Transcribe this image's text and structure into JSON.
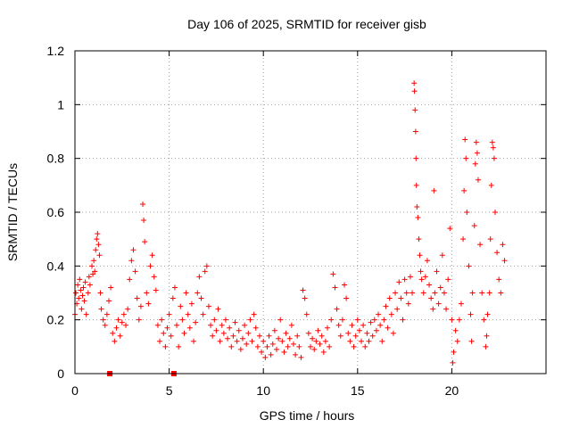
{
  "chart_data": {
    "type": "scatter",
    "title": "Day 106 of 2025, SRMTID for receiver gisb",
    "xlabel": "GPS time / hours",
    "ylabel": "SRMTID / TECUs",
    "xlim": [
      0,
      25
    ],
    "ylim": [
      0,
      1.2
    ],
    "xticks": [
      0,
      5,
      10,
      15,
      20
    ],
    "xtick_labels": [
      "0",
      "5",
      "10",
      "15",
      "20"
    ],
    "yticks": [
      0,
      0.2,
      0.4,
      0.6,
      0.8,
      1.0,
      1.2
    ],
    "ytick_labels": [
      "0",
      "0.2",
      "0.4",
      "0.6",
      "0.8",
      "1",
      "1.2"
    ],
    "grid": true,
    "marker": "plus",
    "color": "#ff0000",
    "series": [
      {
        "name": "gisb",
        "points": [
          [
            0.0,
            0.22
          ],
          [
            0.05,
            0.3
          ],
          [
            0.1,
            0.26
          ],
          [
            0.15,
            0.33
          ],
          [
            0.2,
            0.28
          ],
          [
            0.25,
            0.35
          ],
          [
            0.3,
            0.31
          ],
          [
            0.35,
            0.24
          ],
          [
            0.4,
            0.29
          ],
          [
            0.45,
            0.32
          ],
          [
            0.5,
            0.27
          ],
          [
            0.55,
            0.34
          ],
          [
            0.6,
            0.22
          ],
          [
            0.7,
            0.3
          ],
          [
            0.75,
            0.36
          ],
          [
            0.8,
            0.33
          ],
          [
            0.9,
            0.4
          ],
          [
            0.95,
            0.37
          ],
          [
            1.0,
            0.42
          ],
          [
            1.05,
            0.38
          ],
          [
            1.1,
            0.46
          ],
          [
            1.15,
            0.5
          ],
          [
            1.2,
            0.52
          ],
          [
            1.25,
            0.48
          ],
          [
            1.3,
            0.44
          ],
          [
            1.35,
            0.3
          ],
          [
            1.4,
            0.24
          ],
          [
            1.5,
            0.2
          ],
          [
            1.6,
            0.18
          ],
          [
            1.7,
            0.22
          ],
          [
            1.8,
            0.27
          ],
          [
            1.9,
            0.32
          ],
          [
            2.0,
            0.15
          ],
          [
            2.1,
            0.12
          ],
          [
            2.2,
            0.17
          ],
          [
            2.3,
            0.2
          ],
          [
            2.4,
            0.14
          ],
          [
            2.5,
            0.19
          ],
          [
            2.6,
            0.22
          ],
          [
            2.7,
            0.18
          ],
          [
            2.8,
            0.24
          ],
          [
            2.9,
            0.35
          ],
          [
            3.0,
            0.42
          ],
          [
            3.1,
            0.46
          ],
          [
            3.2,
            0.38
          ],
          [
            3.3,
            0.28
          ],
          [
            3.4,
            0.2
          ],
          [
            3.5,
            0.25
          ],
          [
            3.6,
            0.63
          ],
          [
            3.65,
            0.57
          ],
          [
            3.7,
            0.49
          ],
          [
            3.8,
            0.3
          ],
          [
            3.9,
            0.26
          ],
          [
            4.0,
            0.4
          ],
          [
            4.1,
            0.44
          ],
          [
            4.2,
            0.36
          ],
          [
            4.3,
            0.31
          ],
          [
            4.4,
            0.18
          ],
          [
            4.5,
            0.12
          ],
          [
            4.6,
            0.2
          ],
          [
            4.7,
            0.15
          ],
          [
            4.8,
            0.1
          ],
          [
            4.9,
            0.17
          ],
          [
            5.0,
            0.22
          ],
          [
            5.1,
            0.14
          ],
          [
            5.2,
            0.28
          ],
          [
            5.3,
            0.32
          ],
          [
            5.4,
            0.18
          ],
          [
            5.5,
            0.1
          ],
          [
            5.6,
            0.25
          ],
          [
            5.7,
            0.2
          ],
          [
            5.8,
            0.15
          ],
          [
            5.9,
            0.3
          ],
          [
            6.0,
            0.22
          ],
          [
            6.1,
            0.17
          ],
          [
            6.2,
            0.26
          ],
          [
            6.3,
            0.12
          ],
          [
            6.4,
            0.19
          ],
          [
            6.5,
            0.3
          ],
          [
            6.6,
            0.36
          ],
          [
            6.7,
            0.28
          ],
          [
            6.8,
            0.22
          ],
          [
            6.9,
            0.38
          ],
          [
            7.0,
            0.4
          ],
          [
            7.1,
            0.25
          ],
          [
            7.2,
            0.18
          ],
          [
            7.3,
            0.14
          ],
          [
            7.4,
            0.2
          ],
          [
            7.5,
            0.16
          ],
          [
            7.6,
            0.24
          ],
          [
            7.7,
            0.12
          ],
          [
            7.8,
            0.18
          ],
          [
            7.9,
            0.15
          ],
          [
            8.0,
            0.2
          ],
          [
            8.1,
            0.13
          ],
          [
            8.2,
            0.17
          ],
          [
            8.3,
            0.1
          ],
          [
            8.4,
            0.14
          ],
          [
            8.5,
            0.19
          ],
          [
            8.6,
            0.12
          ],
          [
            8.7,
            0.16
          ],
          [
            8.8,
            0.09
          ],
          [
            8.9,
            0.13
          ],
          [
            9.0,
            0.18
          ],
          [
            9.1,
            0.11
          ],
          [
            9.2,
            0.15
          ],
          [
            9.3,
            0.2
          ],
          [
            9.4,
            0.12
          ],
          [
            9.5,
            0.22
          ],
          [
            9.6,
            0.17
          ],
          [
            9.7,
            0.1
          ],
          [
            9.8,
            0.14
          ],
          [
            9.9,
            0.08
          ],
          [
            10.0,
            0.12
          ],
          [
            10.1,
            0.06
          ],
          [
            10.2,
            0.1
          ],
          [
            10.3,
            0.14
          ],
          [
            10.4,
            0.07
          ],
          [
            10.5,
            0.11
          ],
          [
            10.6,
            0.16
          ],
          [
            10.7,
            0.09
          ],
          [
            10.8,
            0.13
          ],
          [
            10.9,
            0.2
          ],
          [
            11.0,
            0.12
          ],
          [
            11.1,
            0.08
          ],
          [
            11.2,
            0.15
          ],
          [
            11.3,
            0.1
          ],
          [
            11.4,
            0.13
          ],
          [
            11.5,
            0.18
          ],
          [
            11.6,
            0.11
          ],
          [
            11.7,
            0.07
          ],
          [
            11.8,
            0.14
          ],
          [
            11.9,
            0.1
          ],
          [
            12.0,
            0.06
          ],
          [
            12.1,
            0.31
          ],
          [
            12.2,
            0.28
          ],
          [
            12.3,
            0.22
          ],
          [
            12.4,
            0.15
          ],
          [
            12.5,
            0.1
          ],
          [
            12.6,
            0.13
          ],
          [
            12.7,
            0.09
          ],
          [
            12.8,
            0.12
          ],
          [
            12.9,
            0.16
          ],
          [
            13.0,
            0.11
          ],
          [
            13.1,
            0.14
          ],
          [
            13.2,
            0.08
          ],
          [
            13.3,
            0.12
          ],
          [
            13.4,
            0.17
          ],
          [
            13.5,
            0.1
          ],
          [
            13.6,
            0.2
          ],
          [
            13.7,
            0.37
          ],
          [
            13.8,
            0.32
          ],
          [
            13.9,
            0.24
          ],
          [
            14.0,
            0.18
          ],
          [
            14.1,
            0.14
          ],
          [
            14.2,
            0.2
          ],
          [
            14.3,
            0.33
          ],
          [
            14.4,
            0.28
          ],
          [
            14.5,
            0.15
          ],
          [
            14.6,
            0.12
          ],
          [
            14.7,
            0.18
          ],
          [
            14.8,
            0.1
          ],
          [
            14.9,
            0.14
          ],
          [
            15.0,
            0.2
          ],
          [
            15.1,
            0.16
          ],
          [
            15.2,
            0.12
          ],
          [
            15.3,
            0.18
          ],
          [
            15.4,
            0.1
          ],
          [
            15.5,
            0.15
          ],
          [
            15.6,
            0.12
          ],
          [
            15.7,
            0.19
          ],
          [
            15.8,
            0.14
          ],
          [
            15.9,
            0.2
          ],
          [
            16.0,
            0.16
          ],
          [
            16.1,
            0.22
          ],
          [
            16.2,
            0.18
          ],
          [
            16.3,
            0.12
          ],
          [
            16.4,
            0.2
          ],
          [
            16.5,
            0.25
          ],
          [
            16.6,
            0.17
          ],
          [
            16.7,
            0.28
          ],
          [
            16.8,
            0.22
          ],
          [
            16.9,
            0.15
          ],
          [
            17.0,
            0.3
          ],
          [
            17.1,
            0.24
          ],
          [
            17.2,
            0.34
          ],
          [
            17.3,
            0.28
          ],
          [
            17.4,
            0.2
          ],
          [
            17.5,
            0.35
          ],
          [
            17.6,
            0.3
          ],
          [
            17.7,
            0.26
          ],
          [
            17.8,
            0.36
          ],
          [
            17.9,
            0.3
          ],
          [
            18.0,
            1.08
          ],
          [
            18.02,
            1.05
          ],
          [
            18.05,
            0.98
          ],
          [
            18.08,
            0.9
          ],
          [
            18.1,
            0.8
          ],
          [
            18.12,
            0.7
          ],
          [
            18.15,
            0.62
          ],
          [
            18.2,
            0.58
          ],
          [
            18.25,
            0.5
          ],
          [
            18.3,
            0.44
          ],
          [
            18.35,
            0.38
          ],
          [
            18.4,
            0.35
          ],
          [
            18.5,
            0.3
          ],
          [
            18.6,
            0.36
          ],
          [
            18.7,
            0.42
          ],
          [
            18.8,
            0.33
          ],
          [
            18.9,
            0.28
          ],
          [
            19.0,
            0.24
          ],
          [
            19.05,
            0.68
          ],
          [
            19.1,
            0.3
          ],
          [
            19.2,
            0.38
          ],
          [
            19.3,
            0.26
          ],
          [
            19.4,
            0.32
          ],
          [
            19.5,
            0.44
          ],
          [
            19.6,
            0.3
          ],
          [
            19.7,
            0.24
          ],
          [
            19.8,
            0.35
          ],
          [
            19.9,
            0.54
          ],
          [
            20.0,
            0.2
          ],
          [
            20.05,
            0.04
          ],
          [
            20.1,
            0.08
          ],
          [
            20.2,
            0.16
          ],
          [
            20.3,
            0.12
          ],
          [
            20.4,
            0.2
          ],
          [
            20.5,
            0.26
          ],
          [
            20.6,
            0.5
          ],
          [
            20.65,
            0.68
          ],
          [
            20.7,
            0.87
          ],
          [
            20.75,
            0.8
          ],
          [
            20.8,
            0.6
          ],
          [
            20.9,
            0.4
          ],
          [
            21.0,
            0.22
          ],
          [
            21.05,
            0.12
          ],
          [
            21.1,
            0.3
          ],
          [
            21.2,
            0.55
          ],
          [
            21.25,
            0.78
          ],
          [
            21.3,
            0.86
          ],
          [
            21.35,
            0.82
          ],
          [
            21.4,
            0.72
          ],
          [
            21.5,
            0.48
          ],
          [
            21.6,
            0.3
          ],
          [
            21.7,
            0.2
          ],
          [
            21.8,
            0.1
          ],
          [
            21.85,
            0.14
          ],
          [
            21.9,
            0.22
          ],
          [
            22.0,
            0.3
          ],
          [
            22.05,
            0.5
          ],
          [
            22.1,
            0.7
          ],
          [
            22.15,
            0.86
          ],
          [
            22.2,
            0.84
          ],
          [
            22.25,
            0.8
          ],
          [
            22.3,
            0.6
          ],
          [
            22.4,
            0.45
          ],
          [
            22.5,
            0.35
          ],
          [
            22.6,
            0.3
          ],
          [
            22.7,
            0.48
          ],
          [
            22.8,
            0.42
          ]
        ]
      }
    ],
    "square_markers": [
      [
        1.85,
        0.0
      ],
      [
        5.25,
        0.0
      ]
    ]
  }
}
